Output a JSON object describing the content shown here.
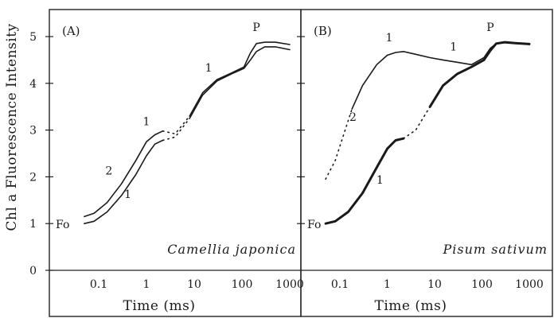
{
  "chart_data": [
    {
      "type": "line",
      "panel_label": "(A)",
      "species": "Camellia japonica",
      "xlabel": "Time (ms)",
      "ylabel": "Chl a Fluorescence Intensity",
      "xscale": "log",
      "x_tick_labels": [
        "0.1",
        "1",
        "10",
        "100",
        "1000"
      ],
      "x_tick_values": [
        0.1,
        1,
        10,
        100,
        1000
      ],
      "y_tick_labels": [
        "0",
        "1",
        "2",
        "3",
        "4",
        "5"
      ],
      "y_tick_values": [
        0,
        1,
        2,
        3,
        4,
        5
      ],
      "ylim": [
        0,
        5.4
      ],
      "annotations": {
        "fo": "Fo",
        "p": "P",
        "one": "1",
        "two": "2"
      },
      "series": [
        {
          "label": "1",
          "x": [
            0.05,
            0.08,
            0.15,
            0.3,
            0.6,
            1.0,
            1.5,
            2.2,
            4,
            8,
            15,
            30,
            60,
            110,
            150,
            200,
            300,
            500,
            1000
          ],
          "y": [
            1.0,
            1.05,
            1.25,
            1.6,
            2.05,
            2.45,
            2.7,
            2.78,
            2.85,
            3.25,
            3.75,
            4.05,
            4.2,
            4.32,
            4.5,
            4.68,
            4.78,
            4.78,
            4.72
          ],
          "dotted_range": [
            2.2,
            8
          ]
        },
        {
          "label": "2",
          "x": [
            0.05,
            0.08,
            0.15,
            0.3,
            0.6,
            1.0,
            1.5,
            2.2,
            4,
            8,
            15,
            30,
            60,
            110,
            150,
            200,
            300,
            500,
            1000
          ],
          "y": [
            1.15,
            1.22,
            1.45,
            1.85,
            2.35,
            2.75,
            2.9,
            2.98,
            2.92,
            3.3,
            3.8,
            4.08,
            4.22,
            4.35,
            4.65,
            4.85,
            4.88,
            4.88,
            4.83
          ],
          "dotted_range": [
            2.2,
            8
          ]
        }
      ]
    },
    {
      "type": "line",
      "panel_label": "(B)",
      "species": "Pisum sativum",
      "xlabel": "Time (ms)",
      "xscale": "log",
      "x_tick_labels": [
        "0.1",
        "1",
        "10",
        "100",
        "1000"
      ],
      "x_tick_values": [
        0.1,
        1,
        10,
        100,
        1000
      ],
      "ylim": [
        0,
        5.4
      ],
      "annotations": {
        "fo": "Fo",
        "p": "P",
        "one": "1",
        "two": "2"
      },
      "series": [
        {
          "label": "1",
          "x": [
            0.05,
            0.08,
            0.15,
            0.3,
            0.6,
            1.0,
            1.5,
            2.2,
            4,
            8,
            15,
            30,
            60,
            110,
            150,
            200,
            300,
            500,
            1000
          ],
          "y": [
            1.0,
            1.05,
            1.25,
            1.65,
            2.2,
            2.6,
            2.78,
            2.82,
            3.0,
            3.5,
            3.95,
            4.2,
            4.35,
            4.5,
            4.7,
            4.85,
            4.88,
            4.86,
            4.84
          ],
          "dotted_range": [
            2.2,
            8
          ]
        },
        {
          "label": "2",
          "x": [
            0.05,
            0.08,
            0.12,
            0.18,
            0.3,
            0.6,
            1.0,
            1.5,
            2.2,
            4,
            8,
            15,
            30,
            60,
            110,
            150,
            200,
            300,
            500,
            1000
          ],
          "y": [
            1.95,
            2.35,
            2.9,
            3.45,
            3.95,
            4.4,
            4.6,
            4.66,
            4.68,
            4.62,
            4.55,
            4.5,
            4.45,
            4.4,
            4.55,
            4.75,
            4.85,
            4.87,
            4.86,
            4.83
          ],
          "dotted_range": [
            0.05,
            0.18
          ]
        }
      ]
    }
  ]
}
